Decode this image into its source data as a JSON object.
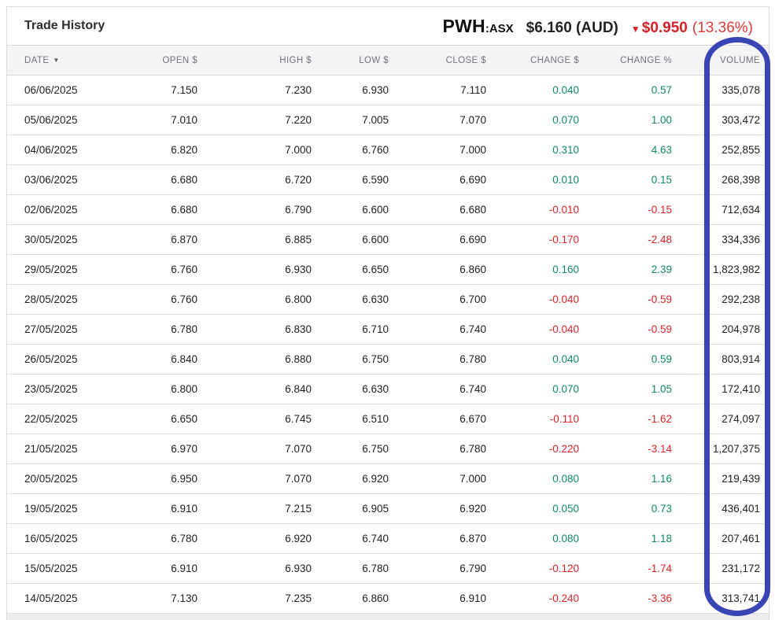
{
  "header": {
    "title": "Trade History",
    "ticker": "PWH",
    "ticker_separator": ":",
    "exchange": "ASX",
    "price": "$6.160 (AUD)",
    "down_arrow": "▼",
    "change_amount": "$0.950",
    "change_percent": "(13.36%)"
  },
  "table": {
    "columns": [
      {
        "key": "date",
        "label": "DATE",
        "sorted": true,
        "sort_arrow": "▼"
      },
      {
        "key": "open",
        "label": "OPEN $",
        "sorted": false
      },
      {
        "key": "high",
        "label": "HIGH $",
        "sorted": false
      },
      {
        "key": "low",
        "label": "LOW $",
        "sorted": false
      },
      {
        "key": "close",
        "label": "CLOSE $",
        "sorted": false
      },
      {
        "key": "change_d",
        "label": "CHANGE $",
        "sorted": false
      },
      {
        "key": "change_p",
        "label": "CHANGE %",
        "sorted": false
      },
      {
        "key": "volume",
        "label": "VOLUME",
        "sorted": false
      }
    ],
    "rows": [
      {
        "date": "06/06/2025",
        "open": "7.150",
        "high": "7.230",
        "low": "6.930",
        "close": "7.110",
        "change_d": "0.040",
        "change_p": "0.57",
        "volume": "335,078"
      },
      {
        "date": "05/06/2025",
        "open": "7.010",
        "high": "7.220",
        "low": "7.005",
        "close": "7.070",
        "change_d": "0.070",
        "change_p": "1.00",
        "volume": "303,472"
      },
      {
        "date": "04/06/2025",
        "open": "6.820",
        "high": "7.000",
        "low": "6.760",
        "close": "7.000",
        "change_d": "0.310",
        "change_p": "4.63",
        "volume": "252,855"
      },
      {
        "date": "03/06/2025",
        "open": "6.680",
        "high": "6.720",
        "low": "6.590",
        "close": "6.690",
        "change_d": "0.010",
        "change_p": "0.15",
        "volume": "268,398"
      },
      {
        "date": "02/06/2025",
        "open": "6.680",
        "high": "6.790",
        "low": "6.600",
        "close": "6.680",
        "change_d": "-0.010",
        "change_p": "-0.15",
        "volume": "712,634"
      },
      {
        "date": "30/05/2025",
        "open": "6.870",
        "high": "6.885",
        "low": "6.600",
        "close": "6.690",
        "change_d": "-0.170",
        "change_p": "-2.48",
        "volume": "334,336"
      },
      {
        "date": "29/05/2025",
        "open": "6.760",
        "high": "6.930",
        "low": "6.650",
        "close": "6.860",
        "change_d": "0.160",
        "change_p": "2.39",
        "volume": "1,823,982"
      },
      {
        "date": "28/05/2025",
        "open": "6.760",
        "high": "6.800",
        "low": "6.630",
        "close": "6.700",
        "change_d": "-0.040",
        "change_p": "-0.59",
        "volume": "292,238"
      },
      {
        "date": "27/05/2025",
        "open": "6.780",
        "high": "6.830",
        "low": "6.710",
        "close": "6.740",
        "change_d": "-0.040",
        "change_p": "-0.59",
        "volume": "204,978"
      },
      {
        "date": "26/05/2025",
        "open": "6.840",
        "high": "6.880",
        "low": "6.750",
        "close": "6.780",
        "change_d": "0.040",
        "change_p": "0.59",
        "volume": "803,914"
      },
      {
        "date": "23/05/2025",
        "open": "6.800",
        "high": "6.840",
        "low": "6.630",
        "close": "6.740",
        "change_d": "0.070",
        "change_p": "1.05",
        "volume": "172,410"
      },
      {
        "date": "22/05/2025",
        "open": "6.650",
        "high": "6.745",
        "low": "6.510",
        "close": "6.670",
        "change_d": "-0.110",
        "change_p": "-1.62",
        "volume": "274,097"
      },
      {
        "date": "21/05/2025",
        "open": "6.970",
        "high": "7.070",
        "low": "6.750",
        "close": "6.780",
        "change_d": "-0.220",
        "change_p": "-3.14",
        "volume": "1,207,375"
      },
      {
        "date": "20/05/2025",
        "open": "6.950",
        "high": "7.070",
        "low": "6.920",
        "close": "7.000",
        "change_d": "0.080",
        "change_p": "1.16",
        "volume": "219,439"
      },
      {
        "date": "19/05/2025",
        "open": "6.910",
        "high": "7.215",
        "low": "6.905",
        "close": "6.920",
        "change_d": "0.050",
        "change_p": "0.73",
        "volume": "436,401"
      },
      {
        "date": "16/05/2025",
        "open": "6.780",
        "high": "6.920",
        "low": "6.740",
        "close": "6.870",
        "change_d": "0.080",
        "change_p": "1.18",
        "volume": "207,461"
      },
      {
        "date": "15/05/2025",
        "open": "6.910",
        "high": "6.930",
        "low": "6.780",
        "close": "6.790",
        "change_d": "-0.120",
        "change_p": "-1.74",
        "volume": "231,172"
      },
      {
        "date": "14/05/2025",
        "open": "7.130",
        "high": "7.235",
        "low": "6.860",
        "close": "6.910",
        "change_d": "-0.240",
        "change_p": "-3.36",
        "volume": "313,741"
      }
    ]
  },
  "annotation": {
    "type": "hand-drawn-rounded-rectangle",
    "target": "volume-column",
    "color": "#3944b5"
  },
  "colors": {
    "gain_green": "#0e8b63",
    "loss_red": "#dc2428",
    "quote_red": "#d7202a",
    "annotation_blue": "#3944b5",
    "header_bg": "#f4f4f6",
    "border": "#d8dadb"
  }
}
